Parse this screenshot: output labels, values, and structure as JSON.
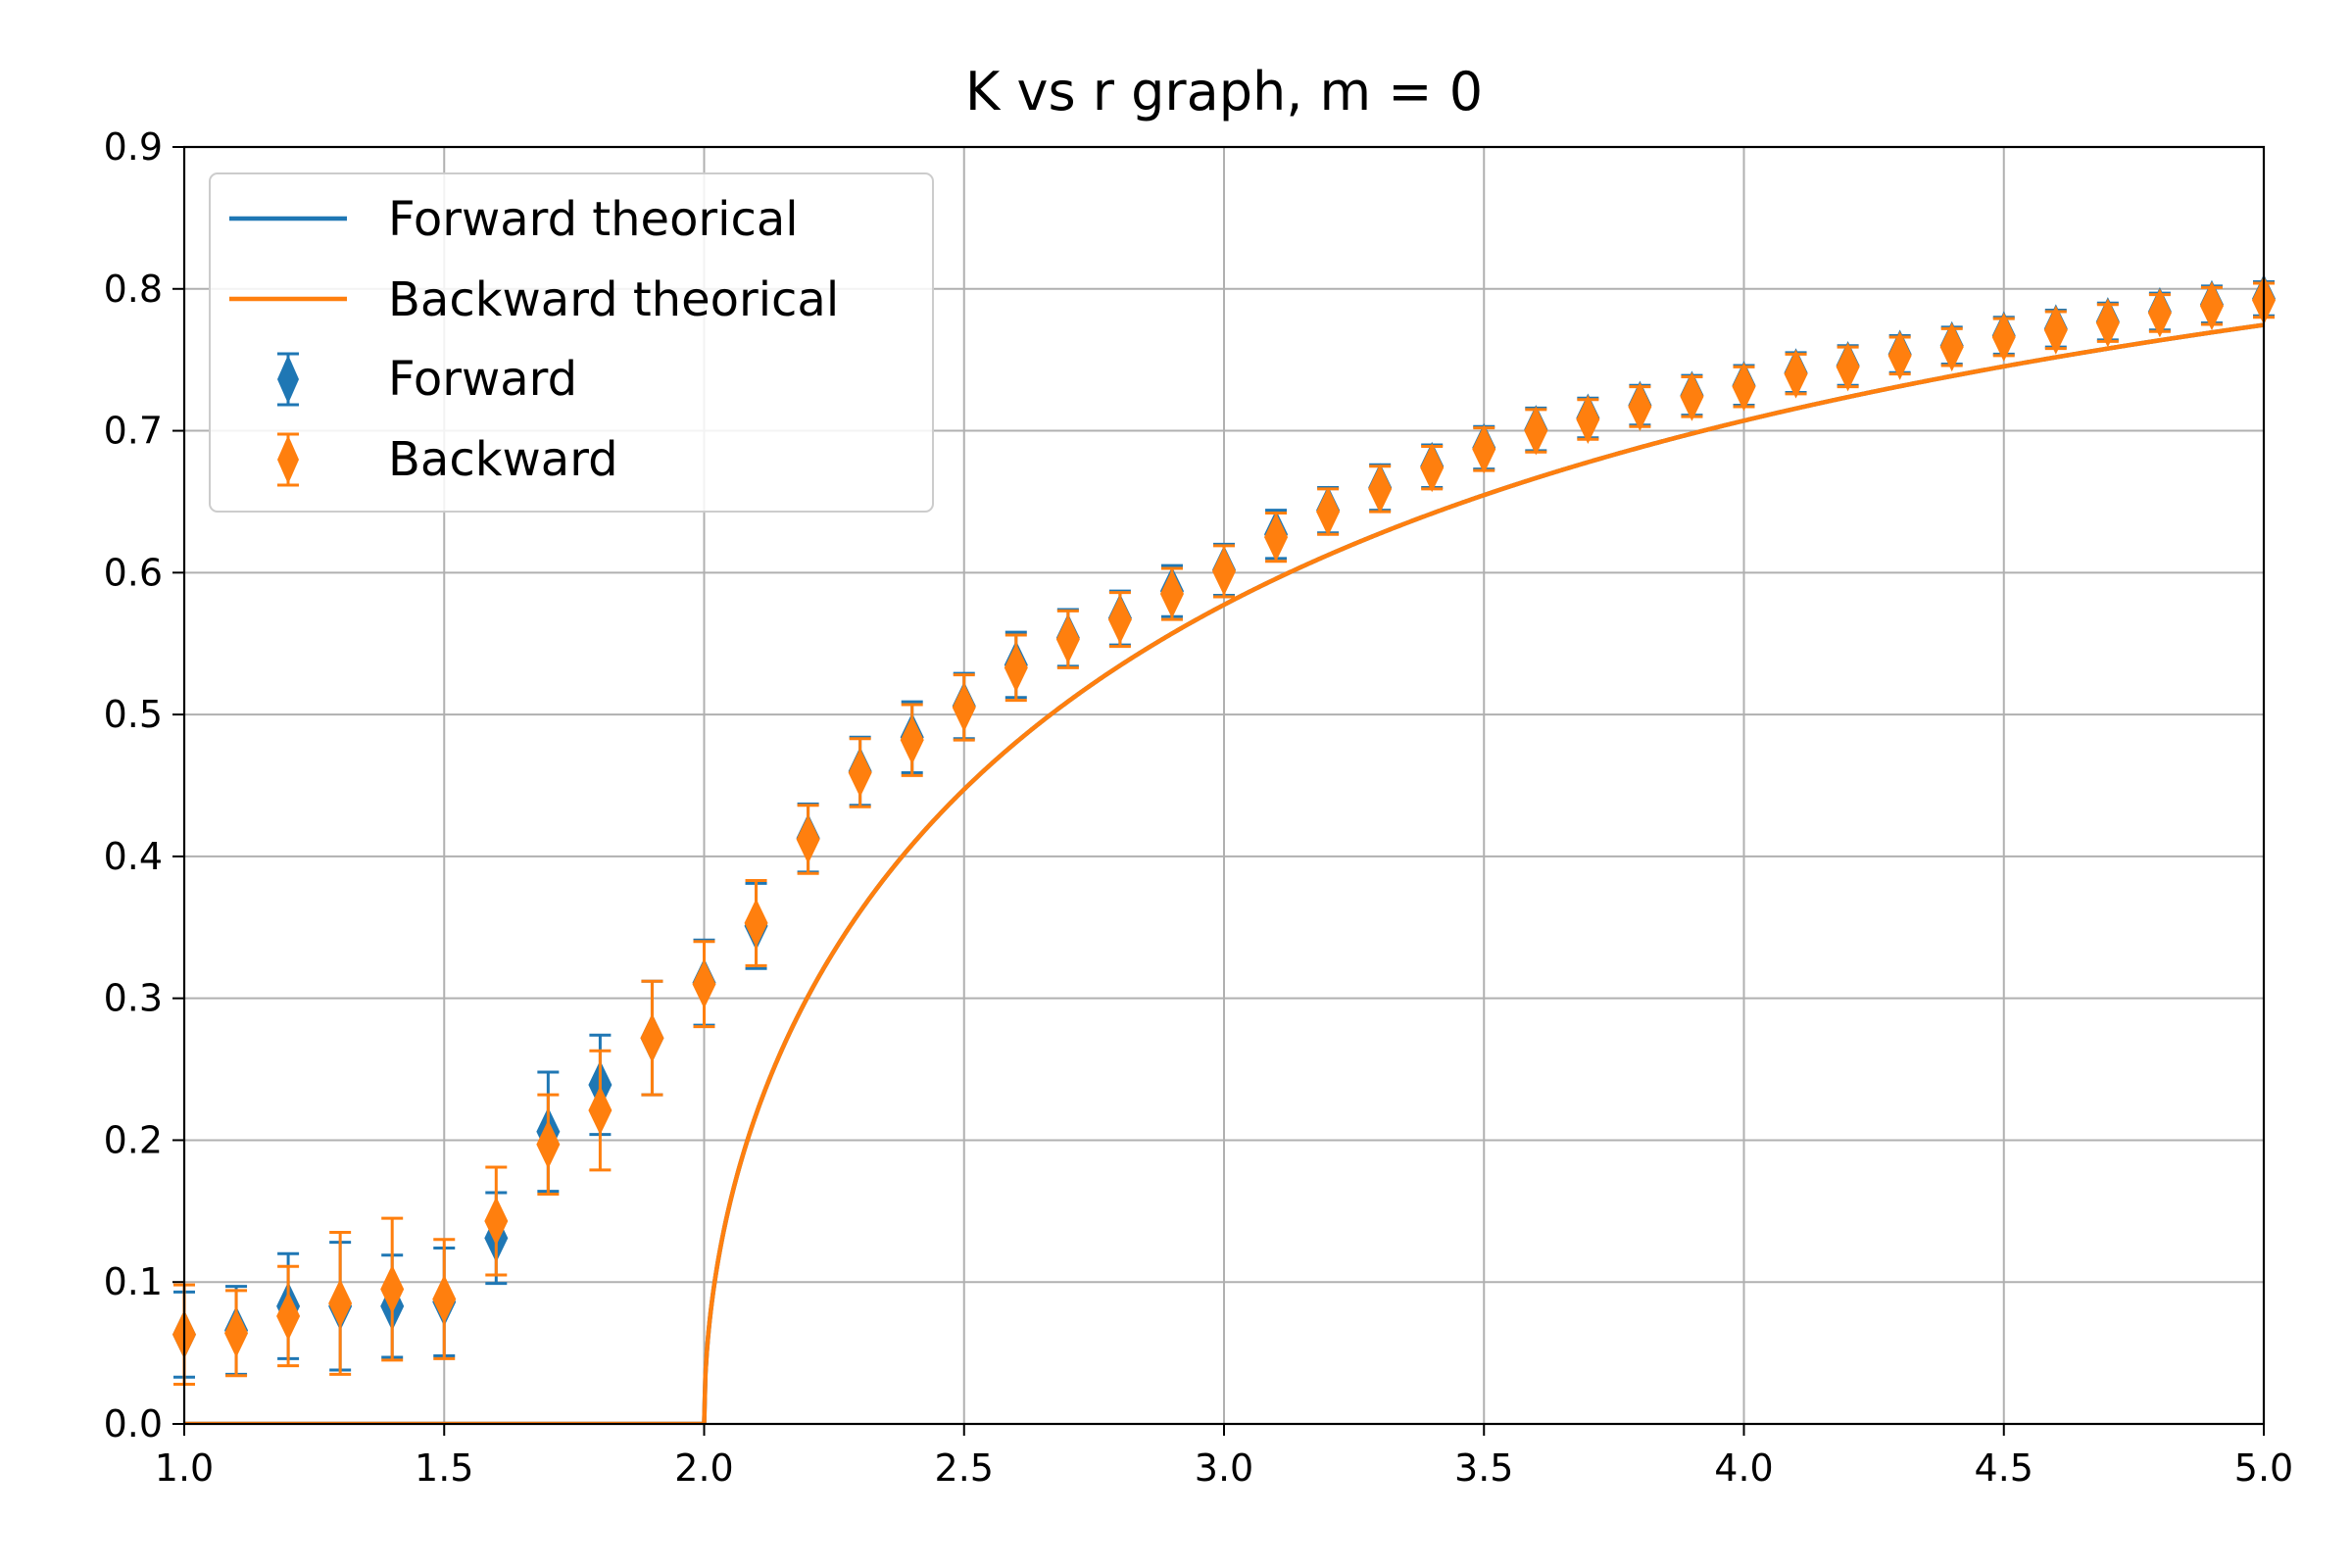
{
  "chart_data": {
    "type": "scatter",
    "title": "K vs r graph, m = 0",
    "xlabel": "",
    "ylabel": "",
    "xlim": [
      1.0,
      5.0
    ],
    "ylim": [
      0.0,
      0.9
    ],
    "grid": true,
    "legend_position": "top-left",
    "x_ticks": [
      "1.0",
      "1.5",
      "2.0",
      "2.5",
      "3.0",
      "3.5",
      "4.0",
      "4.5",
      "5.0"
    ],
    "y_ticks": [
      "0.0",
      "0.1",
      "0.2",
      "0.3",
      "0.4",
      "0.5",
      "0.6",
      "0.7",
      "0.8",
      "0.9"
    ],
    "colors": {
      "forward": "#1f77b4",
      "backward": "#ff7f0e",
      "grid": "#b0b0b0"
    },
    "theory": {
      "formula": "K = sqrt(1 - 2/r) for r >= 2, else 0",
      "series": [
        {
          "name": "Forward theorical",
          "color": "#1f77b4"
        },
        {
          "name": "Backward theorical",
          "color": "#ff7f0e"
        }
      ]
    },
    "r": [
      1.0,
      1.1,
      1.2,
      1.3,
      1.4,
      1.5,
      1.6,
      1.7,
      1.8,
      1.9,
      2.0,
      2.1,
      2.2,
      2.3,
      2.4,
      2.5,
      2.6,
      2.7,
      2.8,
      2.9,
      3.0,
      3.1,
      3.2,
      3.3,
      3.4,
      3.5,
      3.6,
      3.7,
      3.8,
      3.9,
      4.0,
      4.1,
      4.2,
      4.3,
      4.4,
      4.5,
      4.6,
      4.7,
      4.8,
      4.9,
      5.0
    ],
    "series": [
      {
        "name": "Forward",
        "color": "#1f77b4",
        "values": [
          0.063,
          0.066,
          0.083,
          0.083,
          0.083,
          0.086,
          0.131,
          0.206,
          0.239,
          0.272,
          0.311,
          0.351,
          0.413,
          0.46,
          0.484,
          0.506,
          0.535,
          0.554,
          0.568,
          0.587,
          0.602,
          0.627,
          0.644,
          0.66,
          0.675,
          0.688,
          0.701,
          0.709,
          0.718,
          0.725,
          0.732,
          0.741,
          0.746,
          0.754,
          0.76,
          0.767,
          0.772,
          0.777,
          0.784,
          0.789,
          0.793
        ],
        "errors": [
          0.03,
          0.031,
          0.037,
          0.045,
          0.036,
          0.038,
          0.032,
          0.042,
          0.035,
          0.04,
          0.03,
          0.03,
          0.024,
          0.024,
          0.025,
          0.023,
          0.023,
          0.02,
          0.019,
          0.018,
          0.018,
          0.017,
          0.016,
          0.016,
          0.015,
          0.015,
          0.015,
          0.014,
          0.014,
          0.014,
          0.014,
          0.014,
          0.014,
          0.013,
          0.013,
          0.013,
          0.013,
          0.013,
          0.013,
          0.013,
          0.012
        ]
      },
      {
        "name": "Backward",
        "color": "#ff7f0e",
        "values": [
          0.063,
          0.064,
          0.076,
          0.085,
          0.095,
          0.088,
          0.143,
          0.197,
          0.221,
          0.272,
          0.31,
          0.353,
          0.412,
          0.459,
          0.482,
          0.505,
          0.533,
          0.553,
          0.567,
          0.585,
          0.601,
          0.625,
          0.643,
          0.659,
          0.674,
          0.687,
          0.7,
          0.708,
          0.717,
          0.724,
          0.731,
          0.74,
          0.745,
          0.753,
          0.759,
          0.766,
          0.771,
          0.776,
          0.783,
          0.788,
          0.792
        ],
        "errors": [
          0.035,
          0.03,
          0.035,
          0.05,
          0.05,
          0.042,
          0.038,
          0.035,
          0.042,
          0.04,
          0.03,
          0.03,
          0.024,
          0.024,
          0.025,
          0.023,
          0.023,
          0.02,
          0.019,
          0.018,
          0.018,
          0.017,
          0.016,
          0.016,
          0.015,
          0.015,
          0.015,
          0.014,
          0.014,
          0.014,
          0.014,
          0.014,
          0.014,
          0.013,
          0.013,
          0.013,
          0.013,
          0.013,
          0.013,
          0.013,
          0.012
        ]
      }
    ]
  }
}
